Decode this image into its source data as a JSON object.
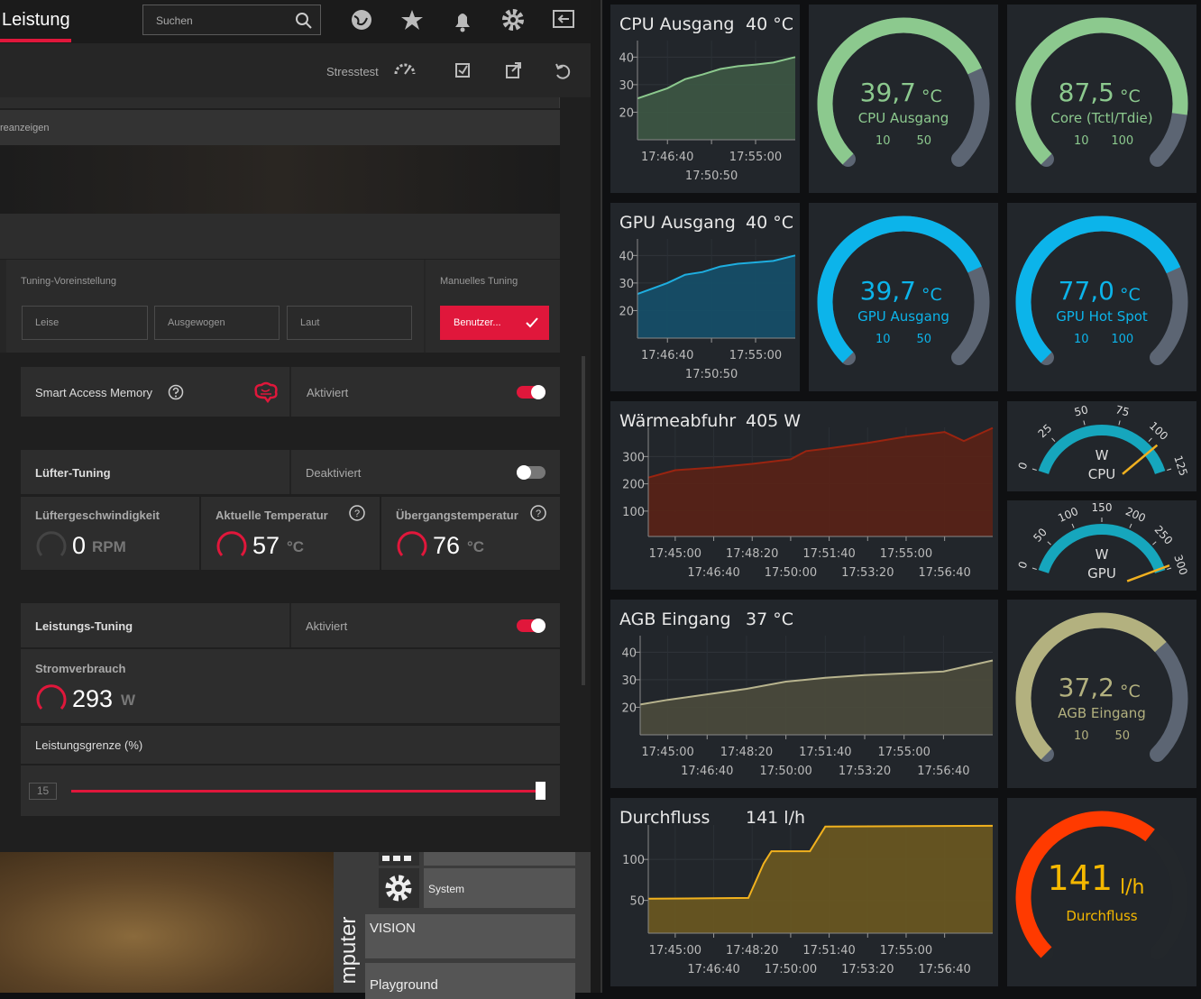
{
  "left": {
    "tab": "Leistung",
    "search": "Suchen",
    "stresstest": "Stresstest",
    "notice": "reanzeigen",
    "tuning_preset": {
      "label": "Tuning-Voreinstellung",
      "options": [
        "Leise",
        "Ausgewogen",
        "Laut"
      ]
    },
    "manual": {
      "label": "Manuelles Tuning",
      "button": "Benutzer..."
    },
    "sam": {
      "label": "Smart Access Memory",
      "state": "Aktiviert",
      "enabled": true
    },
    "fan": {
      "label": "Lüfter-Tuning",
      "state": "Deaktiviert",
      "enabled": false
    },
    "metrics": [
      {
        "label": "Lüftergeschwindigkeit",
        "value": 0,
        "unit": "RPM"
      },
      {
        "label": "Aktuelle Temperatur",
        "value": 57,
        "unit": "°C"
      },
      {
        "label": "Übergangstemperatur",
        "value": 76,
        "unit": "°C"
      }
    ],
    "power": {
      "label": "Leistungs-Tuning",
      "state": "Aktiviert",
      "enabled": true
    },
    "consumption": {
      "label": "Stromverbrauch",
      "value": 293,
      "unit": "W"
    },
    "limit": {
      "label": "Leistungsgrenze (%)",
      "value": 15
    },
    "menu": [
      "System",
      "VISION",
      "Playground"
    ],
    "vertical_text": "mputer"
  },
  "dashboard": {
    "line_panels": [
      {
        "title": "CPU Ausgang",
        "current": "40 °C",
        "color": "#8cc98e",
        "fill": "#3d5844",
        "x": [
          "17:43:50",
          "17:46:40",
          "17:48:20",
          "17:50:00",
          "17:51:40",
          "17:53:20",
          "17:55:00",
          "17:56:40",
          "17:58:45"
        ],
        "values": [
          25,
          28.7,
          32,
          33.7,
          35.7,
          36.7,
          37.3,
          38,
          40
        ],
        "xlim": [
          "17:43:50",
          "17:58:45"
        ],
        "ylim": [
          10,
          46
        ],
        "yticks": [
          20,
          30,
          40
        ],
        "xticks": [
          "17:46:40",
          "17:50:50",
          "17:55:00"
        ]
      },
      {
        "title": "GPU Ausgang",
        "current": "40 °C",
        "color": "#1eaee0",
        "fill": "#15506a",
        "x": [
          "17:43:50",
          "17:46:40",
          "17:48:20",
          "17:50:00",
          "17:51:40",
          "17:53:20",
          "17:55:00",
          "17:56:40",
          "17:58:45"
        ],
        "values": [
          26,
          30,
          33,
          34,
          36,
          37,
          37.5,
          38,
          40
        ],
        "xlim": [
          "17:43:50",
          "17:58:45"
        ],
        "ylim": [
          10,
          46
        ],
        "yticks": [
          20,
          30,
          40
        ],
        "xticks": [
          "17:46:40",
          "17:50:50",
          "17:55:00"
        ]
      },
      {
        "title": "Wärmeabfuhr",
        "current": "405 W",
        "color": "#9a2410",
        "fill": "#5a2216",
        "x": [
          "17:43:50",
          "17:45:00",
          "17:46:40",
          "17:48:20",
          "17:50:00",
          "17:50:40",
          "17:51:40",
          "17:53:20",
          "17:55:00",
          "17:56:40",
          "17:57:30",
          "17:58:45"
        ],
        "values": [
          223,
          250,
          260,
          273,
          290,
          320,
          330,
          350,
          373,
          390,
          357,
          405
        ],
        "xlim": [
          "17:43:50",
          "17:58:45"
        ],
        "ylim": [
          7,
          407
        ],
        "yticks": [
          100,
          200,
          300
        ],
        "xticks": [
          "17:45:00",
          "17:46:40",
          "17:48:20",
          "17:50:00",
          "17:51:40",
          "17:53:20",
          "17:55:00",
          "17:56:40"
        ]
      },
      {
        "title": "AGB Eingang",
        "current": "37 °C",
        "color": "#b8b48e",
        "fill": "#4b4b3c",
        "x": [
          "17:43:50",
          "17:45:00",
          "17:46:40",
          "17:48:20",
          "17:50:00",
          "17:51:40",
          "17:53:20",
          "17:55:00",
          "17:56:40",
          "17:58:45"
        ],
        "values": [
          21,
          22.7,
          24.7,
          26.7,
          29.3,
          30.7,
          31.7,
          32.3,
          33,
          37
        ],
        "xlim": [
          "17:43:50",
          "17:58:45"
        ],
        "ylim": [
          10,
          46
        ],
        "yticks": [
          20,
          30,
          40
        ],
        "xticks": [
          "17:45:00",
          "17:46:40",
          "17:48:20",
          "17:50:00",
          "17:51:40",
          "17:53:20",
          "17:55:00",
          "17:56:40"
        ]
      },
      {
        "title": "Durchfluss",
        "current": "141 l/h",
        "color": "#f2b21e",
        "fill": "#6b5920",
        "x": [
          "17:43:50",
          "17:48:10",
          "17:48:50",
          "17:49:10",
          "17:50:50",
          "17:51:30",
          "17:58:45"
        ],
        "values": [
          52,
          53,
          95,
          110,
          110,
          140,
          141
        ],
        "xlim": [
          "17:43:50",
          "17:58:45"
        ],
        "ylim": [
          10,
          142
        ],
        "yticks": [
          50,
          100
        ],
        "xticks": [
          "17:45:00",
          "17:46:40",
          "17:48:20",
          "17:50:00",
          "17:51:40",
          "17:53:20",
          "17:55:00",
          "17:56:40"
        ]
      }
    ],
    "gauges": [
      {
        "value": 39.7,
        "value_label": "39,7",
        "unit": "°C",
        "label": "CPU Ausgang",
        "lim": [
          10,
          50
        ],
        "ticks": [
          10,
          50
        ],
        "color": "#8cc98e",
        "track_color": "#5c6573",
        "text_color": "#8cc98e"
      },
      {
        "value": 87.5,
        "value_label": "87,5",
        "unit": "°C",
        "label": "Core (Tctl/Tdie)",
        "lim": [
          10,
          100
        ],
        "ticks": [
          10,
          100
        ],
        "color": "#8cc98e",
        "track_color": "#5c6573",
        "text_color": "#8cc98e"
      },
      {
        "value": 39.7,
        "value_label": "39,7",
        "unit": "°C",
        "label": "GPU Ausgang",
        "lim": [
          10,
          50
        ],
        "ticks": [
          10,
          50
        ],
        "color": "#0cb4ea",
        "track_color": "#5c6573",
        "text_color": "#0cb4ea"
      },
      {
        "value": 77,
        "value_label": "77,0",
        "unit": "°C",
        "label": "GPU Hot Spot",
        "lim": [
          10,
          100
        ],
        "ticks": [
          10,
          100
        ],
        "color": "#0cb4ea",
        "track_color": "#5c6573",
        "text_color": "#0cb4ea"
      },
      {
        "value": 37.2,
        "value_label": "37,2",
        "unit": "°C",
        "label": "AGB Eingang",
        "lim": [
          10,
          50
        ],
        "ticks": [
          10,
          50
        ],
        "color": "#b3b17f",
        "track_color": "#5c6573",
        "text_color": "#b3b17f"
      },
      {
        "value": 141,
        "unit": "l/h",
        "label": "Durchfluss",
        "lim": [
          0,
          220
        ],
        "color": "#ff3a00",
        "track_color": "#23272b",
        "text_color": "#f5b800"
      }
    ],
    "power_gauges": [
      {
        "unit": "W",
        "label": "CPU",
        "value": 106,
        "lim": [
          0,
          125
        ],
        "ticks": [
          0,
          25,
          50,
          75,
          100,
          125
        ],
        "color": "#16a6bd",
        "needle_color": "#f0b020"
      },
      {
        "unit": "W",
        "label": "GPU",
        "value": 295,
        "lim": [
          0,
          300
        ],
        "ticks": [
          0,
          50,
          100,
          150,
          200,
          250,
          300
        ],
        "color": "#16a6bd",
        "needle_color": "#f0b020"
      }
    ]
  }
}
